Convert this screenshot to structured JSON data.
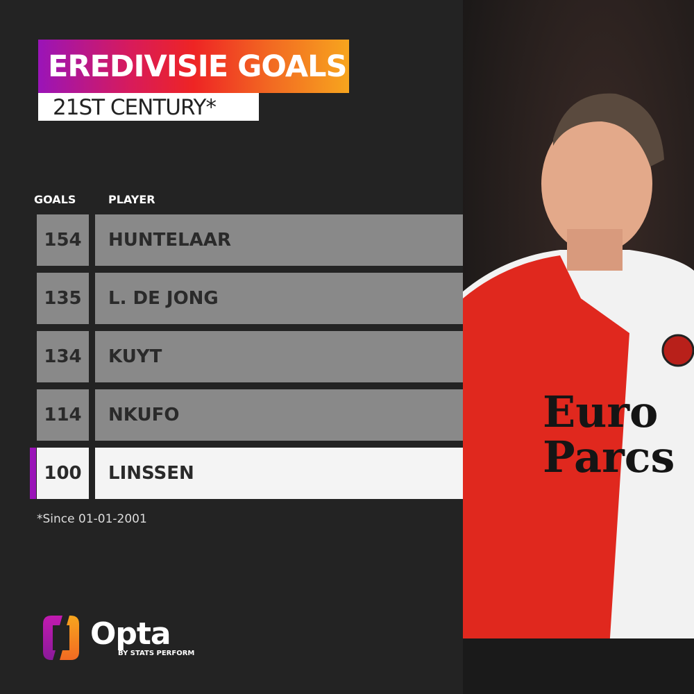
{
  "header": {
    "title": "EREDIVISIE GOALS",
    "subtitle": "21ST CENTURY*"
  },
  "table": {
    "columns": [
      "GOALS",
      "PLAYER"
    ],
    "rows": [
      {
        "goals": "154",
        "player": "HUNTELAAR"
      },
      {
        "goals": "135",
        "player": "L. DE JONG"
      },
      {
        "goals": "134",
        "player": "KUYT"
      },
      {
        "goals": "114",
        "player": "NKUFO"
      },
      {
        "goals": "100",
        "player": "LINSSEN",
        "highlighted": true
      }
    ]
  },
  "footnote": "*Since 01-01-2001",
  "brand": {
    "name": "Opta",
    "byline": "BY STATS PERFORM"
  },
  "colors": {
    "background": "#232323",
    "row": "#898989",
    "highlight_row": "#f4f4f4",
    "accent": "#9a14b8",
    "gradient_end": "#f7a51e"
  },
  "chart_data": {
    "type": "table",
    "title": "EREDIVISIE GOALS",
    "subtitle": "21ST CENTURY*",
    "columns": [
      "GOALS",
      "PLAYER"
    ],
    "categories": [
      "HUNTELAAR",
      "L. DE JONG",
      "KUYT",
      "NKUFO",
      "LINSSEN"
    ],
    "values": [
      154,
      135,
      134,
      114,
      100
    ],
    "highlighted": "LINSSEN"
  }
}
